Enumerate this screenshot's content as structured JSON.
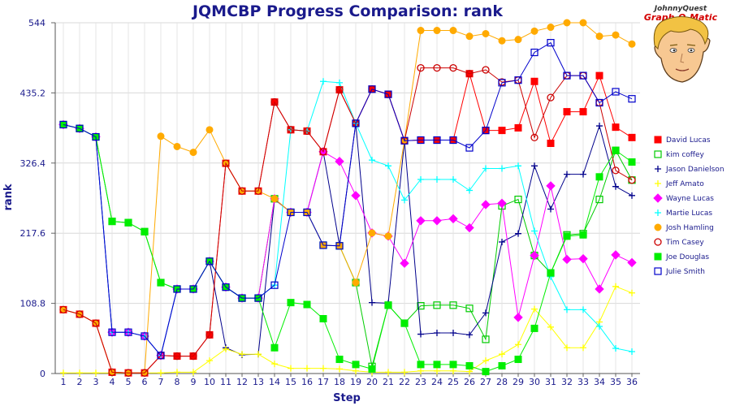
{
  "chart_data": {
    "type": "line",
    "title": "JQMCBP Progress Comparison: rank",
    "xlabel": "Step",
    "ylabel": "rank",
    "x": [
      1,
      2,
      3,
      4,
      5,
      6,
      7,
      8,
      9,
      10,
      11,
      12,
      13,
      14,
      15,
      16,
      17,
      18,
      19,
      20,
      21,
      22,
      23,
      24,
      25,
      26,
      27,
      28,
      29,
      30,
      31,
      32,
      33,
      34,
      35,
      36
    ],
    "ylim": [
      0,
      544
    ],
    "yticks": [
      0,
      108.8,
      217.6,
      326.4,
      435.2,
      544
    ],
    "ytick_labels": [
      "0",
      "108.8",
      "217.6",
      "326.4",
      "435.2",
      "544"
    ],
    "xtick_labels": [
      "1",
      "2",
      "3",
      "4",
      "5",
      "6",
      "7",
      "8",
      "9",
      "10",
      "11",
      "12",
      "13",
      "14",
      "15",
      "16",
      "17",
      "18",
      "19",
      "20",
      "21",
      "22",
      "23",
      "24",
      "25",
      "26",
      "27",
      "28",
      "29",
      "30",
      "31",
      "32",
      "33",
      "34",
      "35",
      "36"
    ],
    "grid": true,
    "legend_position": "right",
    "series": [
      {
        "name": "David Lucas",
        "color": "#ff0000",
        "marker": "square-filled",
        "values": [
          99,
          92,
          78,
          2,
          1,
          1,
          28,
          27,
          27,
          60,
          326,
          283,
          283,
          421,
          378,
          376,
          344,
          440,
          388,
          441,
          433,
          361,
          362,
          362,
          362,
          465,
          377,
          377,
          381,
          453,
          357,
          406,
          406,
          462,
          382,
          366
        ]
      },
      {
        "name": "kim coffey",
        "color": "#00cc00",
        "marker": "square-open",
        "values": [
          386,
          380,
          367,
          236,
          234,
          220,
          141,
          131,
          131,
          174,
          134,
          117,
          117,
          271,
          250,
          250,
          199,
          198,
          141,
          11,
          106,
          78,
          105,
          106,
          106,
          101,
          53,
          260,
          270,
          183,
          156,
          215,
          217,
          270,
          346,
          300
        ]
      },
      {
        "name": "Jason Danielson",
        "color": "#00008b",
        "marker": "plus",
        "values": [
          386,
          380,
          367,
          64,
          64,
          58,
          28,
          131,
          131,
          174,
          40,
          29,
          30,
          270,
          250,
          250,
          344,
          199,
          388,
          110,
          109,
          361,
          61,
          63,
          63,
          60,
          94,
          204,
          217,
          322,
          255,
          309,
          309,
          384,
          290,
          276
        ]
      },
      {
        "name": "Jeff Amato",
        "color": "#ffff00",
        "marker": "plus",
        "values": [
          1,
          1,
          1,
          1,
          1,
          1,
          1,
          2,
          2,
          20,
          38,
          30,
          30,
          15,
          8,
          8,
          8,
          7,
          4,
          2,
          2,
          2,
          4,
          4,
          4,
          3,
          20,
          30,
          45,
          100,
          72,
          40,
          40,
          80,
          135,
          125
        ]
      },
      {
        "name": "Wayne Lucas",
        "color": "#ff00ff",
        "marker": "diamond",
        "values": [
          386,
          380,
          367,
          64,
          64,
          58,
          28,
          131,
          131,
          174,
          134,
          117,
          117,
          271,
          250,
          250,
          344,
          329,
          276,
          218,
          213,
          171,
          237,
          237,
          240,
          226,
          262,
          264,
          87,
          183,
          291,
          177,
          178,
          131,
          184,
          172
        ]
      },
      {
        "name": "Martie Lucas",
        "color": "#00ffff",
        "marker": "plus",
        "values": [
          386,
          380,
          367,
          64,
          64,
          58,
          28,
          131,
          131,
          174,
          134,
          117,
          117,
          137,
          378,
          376,
          453,
          451,
          388,
          331,
          322,
          269,
          301,
          301,
          301,
          284,
          318,
          318,
          322,
          221,
          150,
          99,
          99,
          73,
          39,
          34
        ]
      },
      {
        "name": "Josh Hamling",
        "color": "#ffaa00",
        "marker": "circle-filled",
        "values": [
          99,
          92,
          78,
          2,
          1,
          1,
          368,
          352,
          343,
          378,
          326,
          283,
          283,
          271,
          250,
          250,
          199,
          198,
          141,
          218,
          213,
          361,
          532,
          532,
          532,
          523,
          527,
          516,
          518,
          531,
          537,
          544,
          544,
          523,
          525,
          511
        ]
      },
      {
        "name": "Tim Casey",
        "color": "#cc0000",
        "marker": "circle-open",
        "values": [
          99,
          92,
          78,
          2,
          1,
          1,
          28,
          27,
          27,
          60,
          326,
          283,
          283,
          421,
          378,
          376,
          344,
          440,
          388,
          441,
          433,
          361,
          474,
          474,
          474,
          465,
          471,
          452,
          455,
          366,
          428,
          462,
          462,
          420,
          315,
          300
        ]
      },
      {
        "name": "Joe Douglas",
        "color": "#00ee00",
        "marker": "square-filled",
        "values": [
          386,
          380,
          367,
          236,
          234,
          220,
          141,
          131,
          131,
          174,
          134,
          117,
          117,
          40,
          110,
          107,
          85,
          22,
          14,
          7,
          106,
          78,
          14,
          14,
          14,
          12,
          3,
          12,
          22,
          70,
          156,
          213,
          215,
          305,
          346,
          328
        ]
      },
      {
        "name": "Julie Smith",
        "color": "#0000cc",
        "marker": "square-open",
        "values": [
          386,
          380,
          367,
          64,
          64,
          58,
          28,
          131,
          131,
          174,
          134,
          117,
          117,
          137,
          250,
          250,
          199,
          198,
          388,
          441,
          433,
          361,
          362,
          362,
          362,
          350,
          377,
          451,
          455,
          498,
          513,
          462,
          462,
          420,
          437,
          426
        ]
      }
    ]
  },
  "logo": {
    "line1": "JohnnyQuest",
    "line2": "Graph-O-Matic"
  }
}
